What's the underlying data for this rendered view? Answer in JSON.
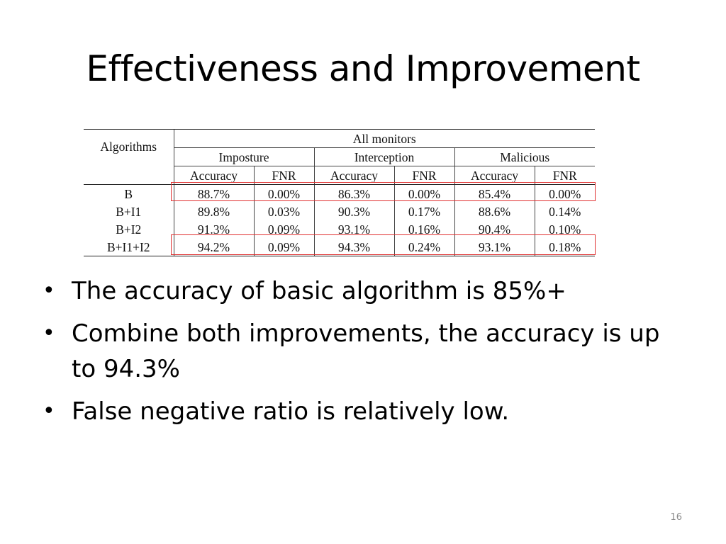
{
  "slide": {
    "title": "Effectiveness and Improvement",
    "page_number": "16"
  },
  "table": {
    "algorithms_header": "Algorithms",
    "group_header": "All monitors",
    "categories": [
      "Imposture",
      "Interception",
      "Malicious"
    ],
    "metric_headers": [
      "Accuracy",
      "FNR",
      "Accuracy",
      "FNR",
      "Accuracy",
      "FNR"
    ],
    "rows": [
      {
        "algorithm": "B",
        "values": [
          "88.7%",
          "0.00%",
          "86.3%",
          "0.00%",
          "85.4%",
          "0.00%"
        ],
        "highlighted": true
      },
      {
        "algorithm": "B+I1",
        "values": [
          "89.8%",
          "0.03%",
          "90.3%",
          "0.17%",
          "88.6%",
          "0.14%"
        ],
        "highlighted": false
      },
      {
        "algorithm": "B+I2",
        "values": [
          "91.3%",
          "0.09%",
          "93.1%",
          "0.16%",
          "90.4%",
          "0.10%"
        ],
        "highlighted": false
      },
      {
        "algorithm": "B+I1+I2",
        "values": [
          "94.2%",
          "0.09%",
          "94.3%",
          "0.24%",
          "93.1%",
          "0.18%"
        ],
        "highlighted": true
      }
    ],
    "highlight_color": "#e03030"
  },
  "bullets": [
    "The accuracy of basic algorithm is 85%+",
    "Combine both improvements, the accuracy is up to 94.3%",
    "False negative ratio is relatively low."
  ],
  "bullet_glyph": "•"
}
